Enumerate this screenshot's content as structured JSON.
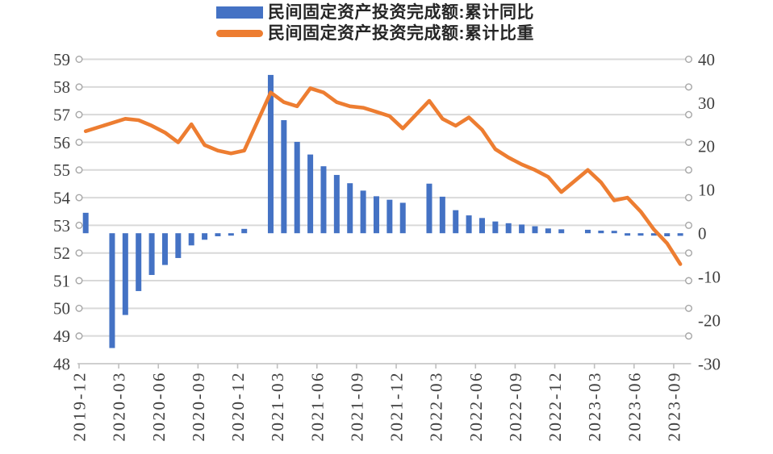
{
  "legend": [
    {
      "label": "民间固定资产投资完成额:累计同比",
      "type": "bar",
      "color": "#4472C4"
    },
    {
      "label": "民间固定资产投资完成额:累计比重",
      "type": "line",
      "color": "#ED7D31"
    }
  ],
  "colors": {
    "bar_series": "#4472C4",
    "line_series": "#ED7D31",
    "gridline": "#D9D9D9",
    "axis_line": "#BFBFBF",
    "tick_circle_stroke": "#A6A6A6",
    "axis_label": "#3F3F3F"
  },
  "chart_data": {
    "type": "bar+line",
    "title": "",
    "grid": "horizontal",
    "legend_position": "top",
    "x_tick_labels": [
      "2019-12",
      "2020-03",
      "2020-06",
      "2020-09",
      "2020-12",
      "2021-03",
      "2021-06",
      "2021-09",
      "2021-12",
      "2022-03",
      "2022-06",
      "2022-09",
      "2022-12",
      "2023-03",
      "2023-06",
      "2023-09"
    ],
    "left_axis": {
      "min": 48,
      "max": 59,
      "tick_labels": [
        "59",
        "58",
        "57",
        "56",
        "55",
        "54",
        "53",
        "52",
        "51",
        "50",
        "49",
        "48"
      ]
    },
    "right_axis": {
      "min": -30,
      "max": 40,
      "tick_labels": [
        "40",
        "30",
        "20",
        "10",
        "0",
        "-10",
        "-20",
        "-30"
      ]
    },
    "months": [
      "2019-12",
      "2020-02",
      "2020-03",
      "2020-04",
      "2020-05",
      "2020-06",
      "2020-07",
      "2020-08",
      "2020-09",
      "2020-10",
      "2020-11",
      "2020-12",
      "2021-02",
      "2021-03",
      "2021-04",
      "2021-05",
      "2021-06",
      "2021-07",
      "2021-08",
      "2021-09",
      "2021-10",
      "2021-11",
      "2021-12",
      "2022-02",
      "2022-03",
      "2022-04",
      "2022-05",
      "2022-06",
      "2022-07",
      "2022-08",
      "2022-09",
      "2022-10",
      "2022-11",
      "2022-12",
      "2023-02",
      "2023-03",
      "2023-04",
      "2023-05",
      "2023-06",
      "2023-07",
      "2023-08",
      "2023-09"
    ],
    "series": [
      {
        "name": "民间固定资产投资完成额:累计同比",
        "type": "bar",
        "axis": "right",
        "color": "#4472C4",
        "values": [
          4.7,
          -26.4,
          -18.8,
          -13.3,
          -9.6,
          -7.3,
          -5.7,
          -2.8,
          -1.5,
          -0.7,
          -0.2,
          1.0,
          36.4,
          26.0,
          21.0,
          18.1,
          15.4,
          13.4,
          11.5,
          9.8,
          8.5,
          7.7,
          7.0,
          11.4,
          8.4,
          5.3,
          4.1,
          3.5,
          2.7,
          2.3,
          2.0,
          1.6,
          1.1,
          0.9,
          0.8,
          0.6,
          0.4,
          -0.1,
          -0.2,
          -0.5,
          -0.7,
          -0.6
        ]
      },
      {
        "name": "民间固定资产投资完成额:累计比重",
        "type": "line",
        "axis": "left",
        "color": "#ED7D31",
        "values": [
          56.4,
          56.7,
          56.85,
          56.8,
          56.6,
          56.35,
          56.0,
          56.65,
          55.9,
          55.7,
          55.6,
          55.7,
          57.8,
          57.45,
          57.3,
          57.95,
          57.8,
          57.45,
          57.3,
          57.25,
          57.1,
          56.95,
          56.5,
          57.5,
          56.85,
          56.6,
          56.9,
          56.45,
          55.75,
          55.45,
          55.2,
          55.0,
          54.75,
          54.2,
          55.0,
          54.55,
          53.9,
          54.0,
          53.5,
          52.85,
          52.35,
          51.6
        ]
      }
    ]
  }
}
